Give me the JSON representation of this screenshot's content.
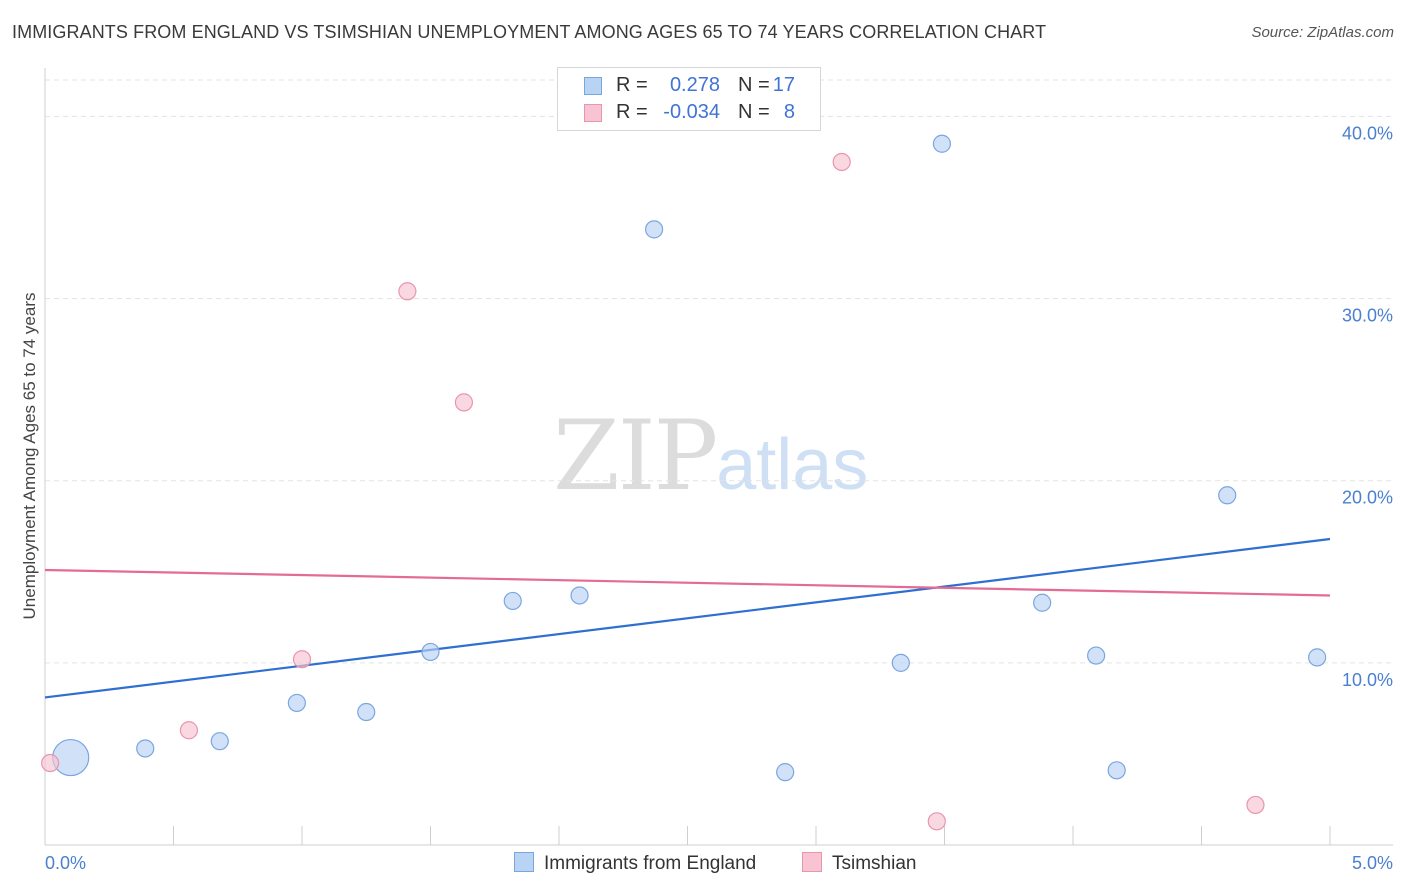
{
  "header": {
    "title": "IMMIGRANTS FROM ENGLAND VS TSIMSHIAN UNEMPLOYMENT AMONG AGES 65 TO 74 YEARS CORRELATION CHART",
    "source": "Source: ZipAtlas.com"
  },
  "watermark": {
    "zip": "ZIP",
    "atlas": "atlas"
  },
  "legend": {
    "rows": [
      {
        "r_label": "R =",
        "r_value": "0.278",
        "n_label": "N =",
        "n_value": "17"
      },
      {
        "r_label": "R =",
        "r_value": "-0.034",
        "n_label": "N =",
        "n_value": "8"
      }
    ]
  },
  "bottom_legend": {
    "england": "Immigrants from England",
    "tsimshian": "Tsimshian"
  },
  "colors": {
    "england_fill": "#b9d3f4",
    "england_stroke": "#7aa6e0",
    "england_line": "#2e6fd1",
    "tsimshian_fill": "#f8c3d2",
    "tsimshian_stroke": "#e895ae",
    "tsimshian_line": "#e36c95",
    "tick_text": "#4a7fd1"
  },
  "chart_data": {
    "type": "scatter",
    "title": "IMMIGRANTS FROM ENGLAND VS TSIMSHIAN UNEMPLOYMENT AMONG AGES 65 TO 74 YEARS CORRELATION CHART",
    "xlabel": "",
    "ylabel": "Unemployment Among Ages 65 to 74 years",
    "xlim": [
      0,
      5.0
    ],
    "ylim": [
      0,
      42
    ],
    "x_tick_labels": [
      "0.0%",
      "5.0%"
    ],
    "y_ticks": [
      10,
      20,
      30,
      40
    ],
    "y_tick_labels": [
      "10.0%",
      "20.0%",
      "30.0%",
      "40.0%"
    ],
    "grid": true,
    "legend_position": "top-center",
    "series": [
      {
        "name": "Immigrants from England",
        "points": [
          {
            "x": 0.1,
            "y": 4.8,
            "size": "large"
          },
          {
            "x": 0.39,
            "y": 5.3
          },
          {
            "x": 0.68,
            "y": 5.7
          },
          {
            "x": 0.98,
            "y": 7.8
          },
          {
            "x": 1.25,
            "y": 7.3
          },
          {
            "x": 1.5,
            "y": 10.6
          },
          {
            "x": 1.82,
            "y": 13.4
          },
          {
            "x": 2.08,
            "y": 13.7
          },
          {
            "x": 2.37,
            "y": 33.8
          },
          {
            "x": 2.88,
            "y": 4.0
          },
          {
            "x": 3.33,
            "y": 10.0
          },
          {
            "x": 3.49,
            "y": 38.5
          },
          {
            "x": 3.88,
            "y": 13.3
          },
          {
            "x": 4.09,
            "y": 10.4
          },
          {
            "x": 4.17,
            "y": 4.1
          },
          {
            "x": 4.6,
            "y": 19.2
          },
          {
            "x": 4.95,
            "y": 10.3
          }
        ],
        "trend": {
          "x": [
            0,
            5.0
          ],
          "y": [
            8.1,
            16.8
          ]
        }
      },
      {
        "name": "Tsimshian",
        "points": [
          {
            "x": 0.02,
            "y": 4.5
          },
          {
            "x": 0.56,
            "y": 6.3
          },
          {
            "x": 1.0,
            "y": 10.2
          },
          {
            "x": 1.41,
            "y": 30.4
          },
          {
            "x": 1.63,
            "y": 24.3
          },
          {
            "x": 3.1,
            "y": 37.5
          },
          {
            "x": 3.47,
            "y": 1.3
          },
          {
            "x": 4.71,
            "y": 2.2
          }
        ],
        "trend": {
          "x": [
            0,
            5.0
          ],
          "y": [
            15.1,
            13.7
          ]
        }
      }
    ]
  }
}
